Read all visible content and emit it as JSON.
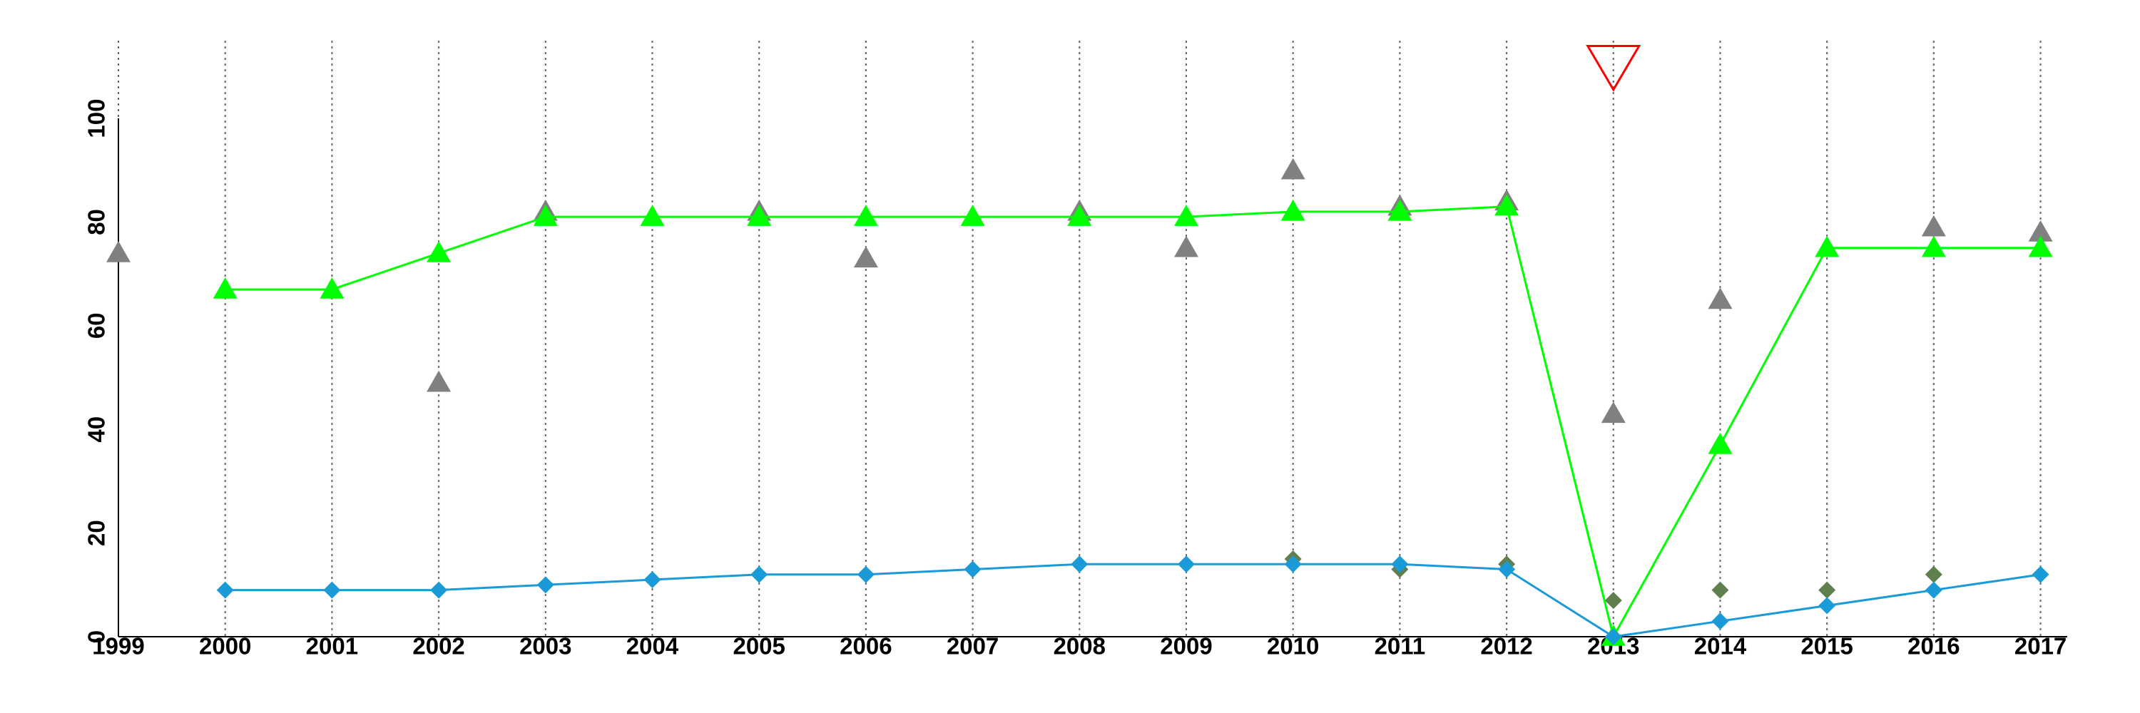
{
  "chart_data": {
    "type": "line",
    "x": [
      1999,
      2000,
      2001,
      2002,
      2003,
      2004,
      2005,
      2006,
      2007,
      2008,
      2009,
      2010,
      2011,
      2012,
      2013,
      2014,
      2015,
      2016,
      2017
    ],
    "series": [
      {
        "color": "#808080",
        "mode": "markers",
        "marker": "triangle-up",
        "values": [
          74,
          null,
          null,
          49,
          82,
          null,
          82,
          73,
          null,
          82,
          75,
          90,
          83,
          84,
          43,
          65,
          null,
          79,
          78
        ]
      },
      {
        "color": "#5f7f4f",
        "mode": "markers",
        "marker": "diamond",
        "values": [
          null,
          null,
          null,
          null,
          null,
          null,
          null,
          null,
          null,
          null,
          null,
          15,
          13,
          14,
          7,
          9,
          9,
          12,
          null
        ]
      },
      {
        "color": "#00ff00",
        "mode": "lines+markers",
        "marker": "triangle-up",
        "values": [
          null,
          67,
          67,
          74,
          81,
          81,
          81,
          81,
          81,
          81,
          81,
          82,
          82,
          83,
          0,
          37,
          75,
          75,
          75
        ]
      },
      {
        "color": "#1a9ad6",
        "mode": "lines+markers",
        "marker": "diamond",
        "values": [
          null,
          9,
          9,
          9,
          10,
          11,
          12,
          12,
          13,
          14,
          14,
          14,
          14,
          13,
          0,
          3,
          6,
          9,
          12
        ]
      },
      {
        "color": "#ff0000",
        "mode": "markers",
        "marker": "triangle-down-open",
        "values": [
          null,
          null,
          null,
          null,
          null,
          null,
          null,
          null,
          null,
          null,
          null,
          null,
          null,
          null,
          110,
          null,
          null,
          null,
          null
        ]
      }
    ],
    "xlim": [
      1999,
      2017.25
    ],
    "xticks": [
      1999,
      2000,
      2001,
      2002,
      2003,
      2004,
      2005,
      2006,
      2007,
      2008,
      2009,
      2010,
      2011,
      2012,
      2013,
      2014,
      2015,
      2016,
      2017
    ],
    "ylim": [
      0,
      115
    ],
    "yticks": [
      0,
      20,
      40,
      60,
      80,
      100
    ],
    "grid": "x"
  }
}
